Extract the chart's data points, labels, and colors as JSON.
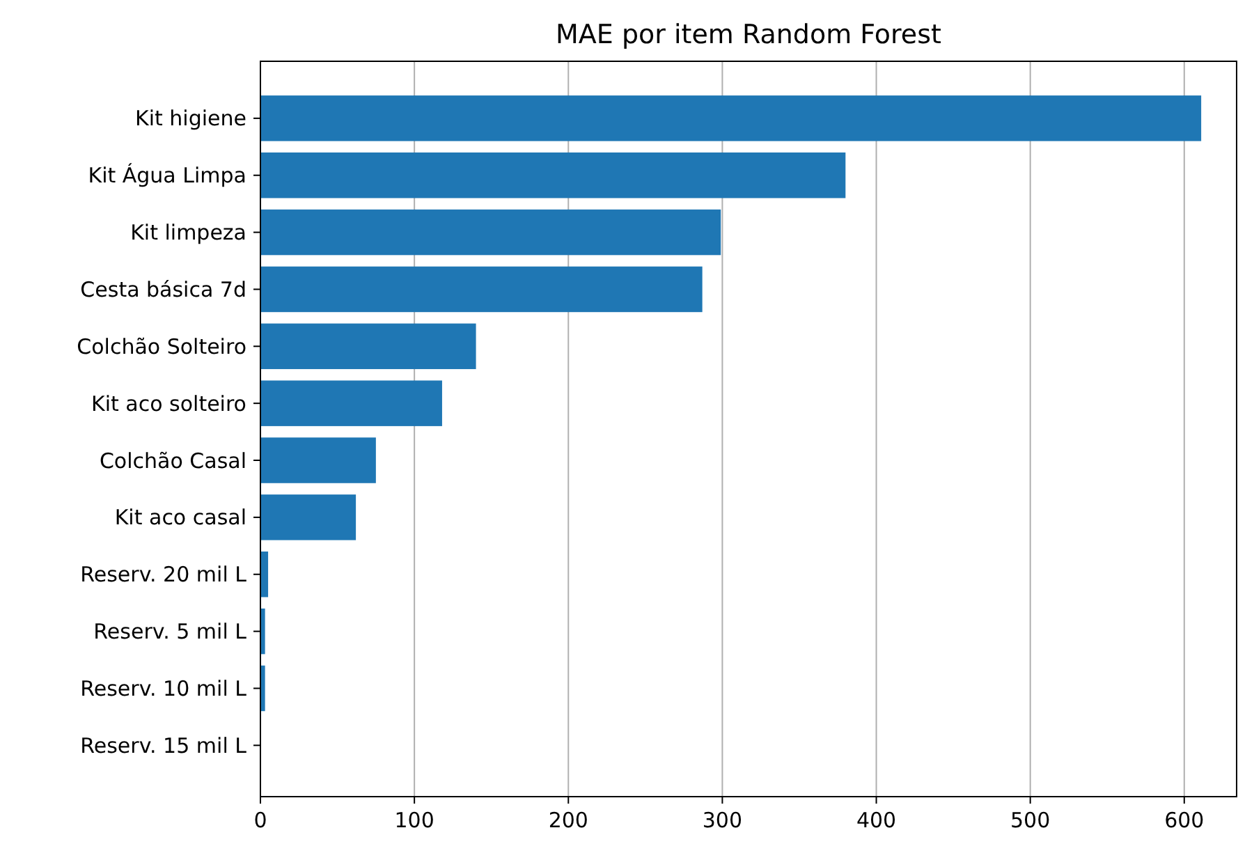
{
  "chart_data": {
    "type": "bar",
    "orientation": "horizontal",
    "title": "MAE por item Random Forest",
    "categories": [
      "Kit higiene",
      "Kit Água Limpa",
      "Kit limpeza",
      "Cesta básica 7d",
      "Colchão Solteiro",
      "Kit aco solteiro",
      "Colchão Casal",
      "Kit aco casal",
      "Reserv. 20 mil L",
      "Reserv. 5 mil L",
      "Reserv. 10 mil L",
      "Reserv. 15 mil L"
    ],
    "values": [
      611,
      380,
      299,
      287,
      140,
      118,
      75,
      62,
      5,
      3,
      3,
      0
    ],
    "color": "#1f77b4",
    "xlim": [
      0,
      634
    ],
    "xticks": [
      0,
      100,
      200,
      300,
      400,
      500,
      600
    ],
    "grid": "x"
  }
}
